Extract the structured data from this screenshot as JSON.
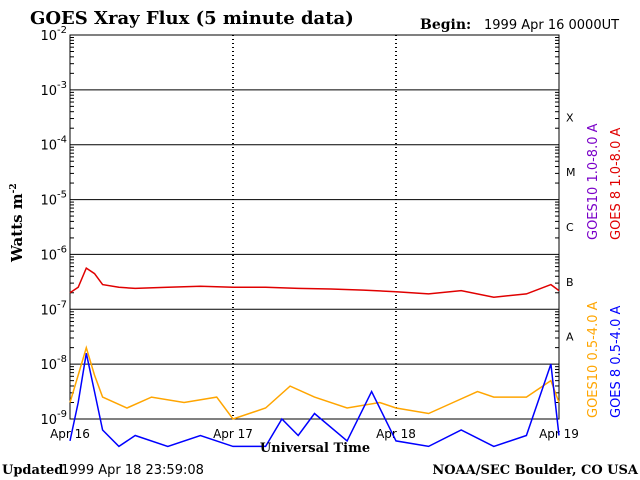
{
  "chart_data": {
    "type": "line",
    "title": "GOES Xray Flux (5 minute data)",
    "begin_label": "Begin:",
    "begin_value": "1999 Apr 16 0000UT",
    "ylabel": "Watts m",
    "ylabel_sup": "-2",
    "xlabel": "Universal Time",
    "y_scale": "log",
    "ylim_exp": [
      -9,
      -2
    ],
    "y_tick_exponents": [
      "-2",
      "-3",
      "-4",
      "-5",
      "-6",
      "-7",
      "-8",
      "-9"
    ],
    "y_tick_base": "10",
    "x_day_range": [
      0,
      3
    ],
    "x_ticks": [
      "Apr 16",
      "Apr 17",
      "Apr 18",
      "Apr 19"
    ],
    "flare_classes": [
      "X",
      "M",
      "C",
      "B",
      "A"
    ],
    "legend": [
      {
        "name": "GOES10 1.0-8.0 A",
        "color": "#7a00c8"
      },
      {
        "name": "GOES 8 1.0-8.0 A",
        "color": "#e00000"
      },
      {
        "name": "GOES10 0.5-4.0 A",
        "color": "#ffa500"
      },
      {
        "name": "GOES 8 0.5-4.0 A",
        "color": "#0000ff"
      }
    ],
    "series": [
      {
        "name": "GOES 8 1.0-8.0 A",
        "color": "#e00000",
        "x_day": [
          0,
          0.05,
          0.1,
          0.15,
          0.2,
          0.3,
          0.4,
          0.6,
          0.8,
          1,
          1.2,
          1.4,
          1.6,
          1.8,
          2,
          2.2,
          2.4,
          2.6,
          2.8,
          2.95,
          3
        ],
        "log_flux": [
          -6.7,
          -6.6,
          -6.25,
          -6.35,
          -6.55,
          -6.6,
          -6.62,
          -6.6,
          -6.58,
          -6.6,
          -6.6,
          -6.62,
          -6.63,
          -6.65,
          -6.68,
          -6.72,
          -6.66,
          -6.78,
          -6.72,
          -6.55,
          -6.66
        ]
      },
      {
        "name": "GOES10 0.5-4.0 A",
        "color": "#ffa500",
        "x_day": [
          0,
          0.05,
          0.1,
          0.15,
          0.2,
          0.35,
          0.5,
          0.7,
          0.9,
          1,
          1.2,
          1.35,
          1.5,
          1.7,
          1.9,
          2,
          2.2,
          2.35,
          2.5,
          2.6,
          2.8,
          2.95,
          3
        ],
        "log_flux": [
          -8.7,
          -8.2,
          -7.7,
          -8.2,
          -8.6,
          -8.8,
          -8.6,
          -8.7,
          -8.6,
          -9,
          -8.8,
          -8.4,
          -8.6,
          -8.8,
          -8.7,
          -8.8,
          -8.9,
          -8.7,
          -8.5,
          -8.6,
          -8.6,
          -8.3,
          -8.7
        ]
      },
      {
        "name": "GOES 8 0.5-4.0 A",
        "color": "#0000ff",
        "x_day": [
          0,
          0.05,
          0.1,
          0.15,
          0.2,
          0.3,
          0.4,
          0.6,
          0.8,
          1,
          1.2,
          1.3,
          1.4,
          1.5,
          1.7,
          1.85,
          2,
          2.2,
          2.4,
          2.6,
          2.8,
          2.95,
          3
        ],
        "log_flux": [
          -9.4,
          -8.7,
          -7.8,
          -8.5,
          -9.2,
          -9.5,
          -9.3,
          -9.5,
          -9.3,
          -9.5,
          -9.5,
          -9,
          -9.3,
          -8.9,
          -9.4,
          -8.5,
          -9.4,
          -9.5,
          -9.2,
          -9.5,
          -9.3,
          -8,
          -9.3
        ]
      }
    ]
  },
  "footer": {
    "updated_label": "Updated",
    "updated_value": "1999 Apr 18 23:59:08",
    "credit": "NOAA/SEC Boulder, CO USA"
  }
}
